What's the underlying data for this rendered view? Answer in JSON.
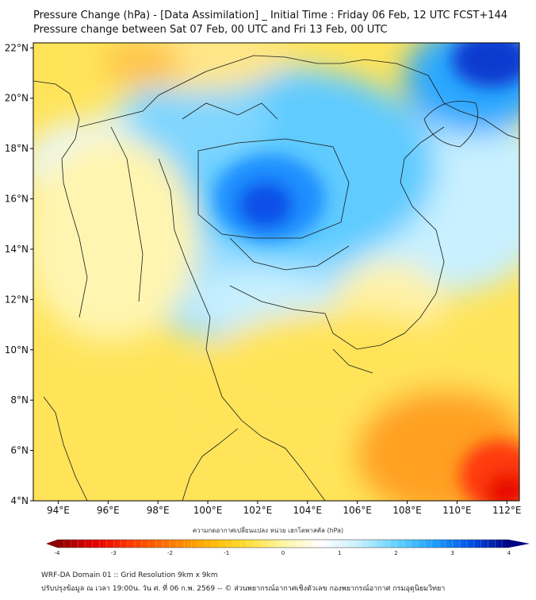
{
  "title": {
    "line1": "Pressure Change (hPa) - [Data Assimilation] _ Initial Time : Friday 06 Feb, 12 UTC FCST+144",
    "line2": "Pressure change between Sat 07 Feb, 00 UTC and Fri 13 Feb, 00 UTC"
  },
  "map": {
    "lon_range": [
      93,
      112.5
    ],
    "lat_range": [
      4,
      22.2
    ],
    "lon_ticks": [
      "94°E",
      "96°E",
      "98°E",
      "100°E",
      "102°E",
      "104°E",
      "106°E",
      "108°E",
      "110°E",
      "112°E"
    ],
    "lon_tick_values": [
      94,
      96,
      98,
      100,
      102,
      104,
      106,
      108,
      110,
      112
    ],
    "lat_ticks": [
      "4°N",
      "6°N",
      "8°N",
      "10°N",
      "12°N",
      "14°N",
      "16°N",
      "18°N",
      "20°N",
      "22°N"
    ],
    "lat_tick_values": [
      4,
      6,
      8,
      10,
      12,
      14,
      16,
      18,
      20,
      22
    ],
    "field_features": [
      {
        "name": "pressure-fall-core",
        "lon": 102.0,
        "lat": 15.7,
        "value": 2.8
      },
      {
        "name": "pressure-fall-northeast",
        "lon": 112.0,
        "lat": 21.8,
        "value": 3.5
      },
      {
        "name": "pressure-rise-southeast",
        "lon": 111.5,
        "lat": 4.7,
        "value": -4.0
      },
      {
        "name": "pressure-rise-north",
        "lon": 97.5,
        "lat": 21.0,
        "value": -0.8
      }
    ]
  },
  "colorbar": {
    "title": "ความกดอากาศเปลี่ยนแปลง หน่วย เฮกโตพาสคัล (hPa)",
    "min": -4,
    "max": 4,
    "tick_labels": [
      "-4",
      "-3",
      "-2",
      "-1",
      "0",
      "1",
      "2",
      "3",
      "4"
    ],
    "tick_values": [
      -4,
      -3,
      -2,
      -1,
      0,
      1,
      2,
      3,
      4
    ],
    "colors": [
      "#8b0000",
      "#e60000",
      "#ff3c00",
      "#ff7800",
      "#ffb400",
      "#ffdc32",
      "#fff5a0",
      "#ffffff",
      "#c8f0ff",
      "#64d2ff",
      "#1ea0ff",
      "#0050e6",
      "#000082"
    ]
  },
  "footer": {
    "line1": "WRF-DA Domain 01 :: Grid Resolution 9km x 9km",
    "line2": "ปรับปรุงข้อมูล ณ เวลา 19:00น. วัน ศ. ที่ 06 ก.พ. 2569 -- © ส่วนพยากรณ์อากาศเชิงตัวเลข กองพยากรณ์อากาศ กรมอุตุนิยมวิทยา"
  }
}
